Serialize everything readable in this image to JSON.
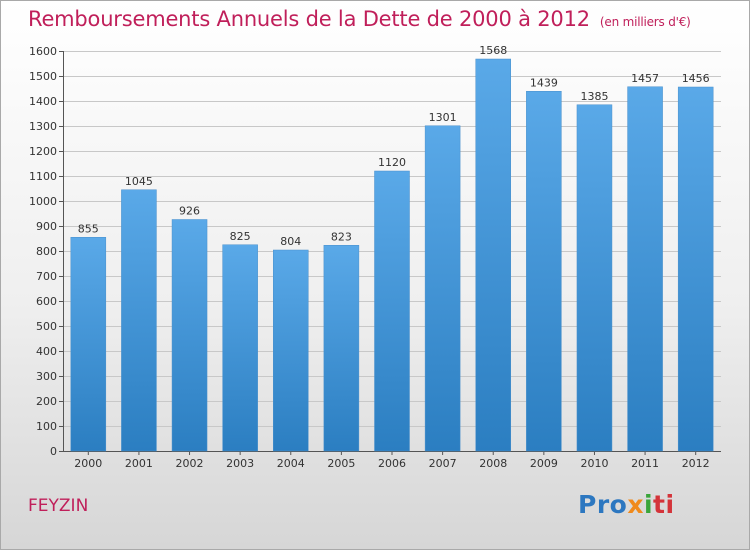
{
  "header": {
    "title": "Remboursements Annuels de la Dette de 2000 à 2012",
    "subtitle": "(en milliers d'€)"
  },
  "footer": {
    "commune": "FEYZIN",
    "logo": {
      "p1": "Pro",
      "p2": "x",
      "p3": "i",
      "p4": "ti"
    }
  },
  "colors": {
    "bar_top": "#5aa9e8",
    "bar_bottom": "#2b7ec1",
    "title": "#c01f5a"
  },
  "chart_data": {
    "type": "bar",
    "title": "Remboursements Annuels de la Dette de 2000 à 2012",
    "subtitle": "(en milliers d'€)",
    "xlabel": "",
    "ylabel": "",
    "categories": [
      "2000",
      "2001",
      "2002",
      "2003",
      "2004",
      "2005",
      "2006",
      "2007",
      "2008",
      "2009",
      "2010",
      "2011",
      "2012"
    ],
    "values": [
      855,
      1045,
      926,
      825,
      804,
      823,
      1120,
      1301,
      1568,
      1439,
      1385,
      1457,
      1456
    ],
    "ylim": [
      0,
      1600
    ],
    "yticks": [
      0,
      100,
      200,
      300,
      400,
      500,
      600,
      700,
      800,
      900,
      1000,
      1100,
      1200,
      1300,
      1400,
      1500,
      1600
    ],
    "grid": true,
    "data_labels": true
  }
}
